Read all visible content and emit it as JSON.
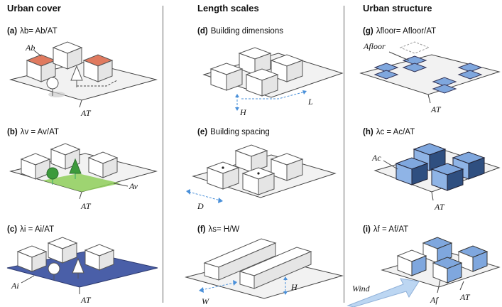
{
  "columns": [
    {
      "title": "Urban cover"
    },
    {
      "title": "Length scales"
    },
    {
      "title": "Urban structure"
    }
  ],
  "panels": {
    "a": {
      "tag": "(a)",
      "formula": "λb= Ab/AT"
    },
    "b": {
      "tag": "(b)",
      "formula": "λv = Av/AT"
    },
    "c": {
      "tag": "(c)",
      "formula": "λi = Ai/AT"
    },
    "d": {
      "tag": "(d)",
      "formula": "Building dimensions"
    },
    "e": {
      "tag": "(e)",
      "formula": "Building spacing"
    },
    "f": {
      "tag": "(f)",
      "formula": "λs= H/W"
    },
    "g": {
      "tag": "(g)",
      "formula": "λfloor= Afloor/AT"
    },
    "h": {
      "tag": "(h)",
      "formula": "λc = Ac/AT"
    },
    "i": {
      "tag": "(i)",
      "formula": "λf = Af/AT"
    }
  },
  "labels": {
    "Ab": "Ab",
    "AT": "AT",
    "Av": "Av",
    "Ai": "Ai",
    "H": "H",
    "L": "L",
    "D": "D",
    "W": "W",
    "Afloor": "Afloor",
    "Ac": "Ac",
    "Af": "Af",
    "wind": "Wind"
  },
  "colors": {
    "roof": "#e07a5f",
    "vegetation": "#8fcf5a",
    "impervious": "#4a5fa8",
    "structure_blue": "#7fa7de",
    "arrow": "#bcd6f2",
    "dash": "#4a90d9"
  }
}
